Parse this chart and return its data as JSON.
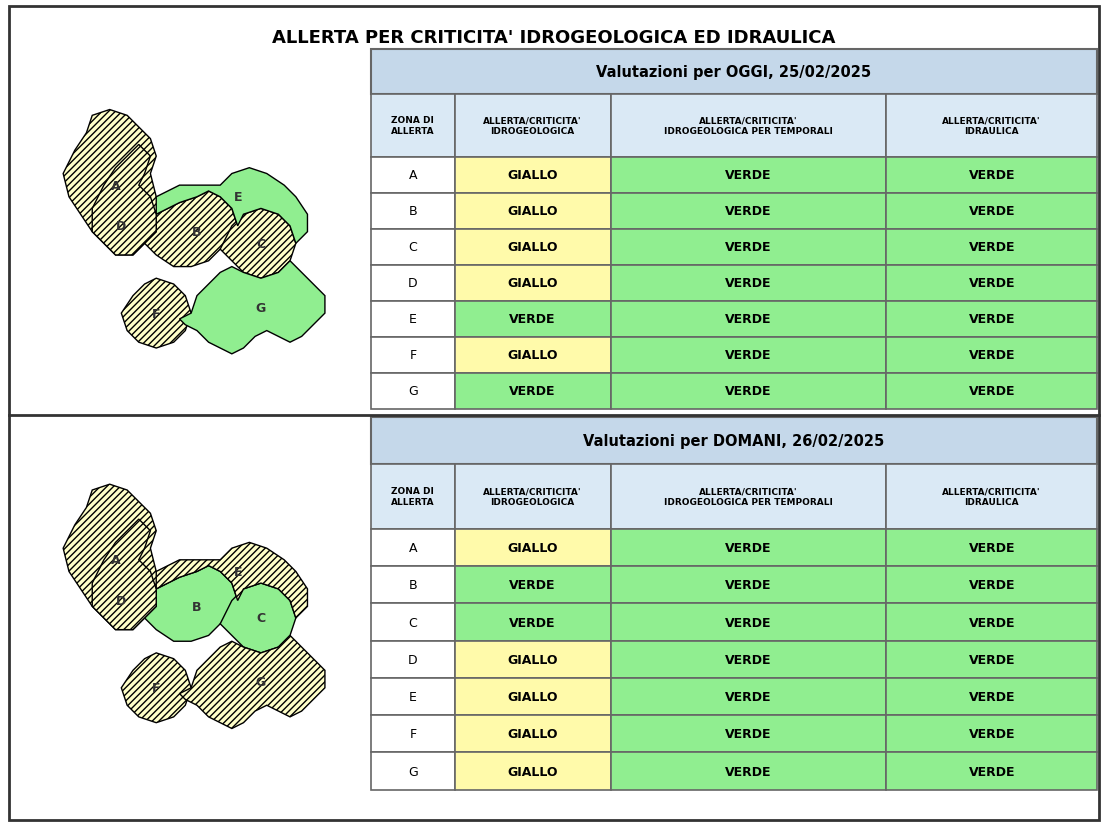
{
  "title": "ALLERTA PER CRITICITA' IDROGEOLOGICA ED IDRAULICA",
  "table1_header": "Valutazioni per OGGI, 25/02/2025",
  "table2_header": "Valutazioni per DOMANI, 26/02/2025",
  "col_headers": [
    "ZONA DI\nALLERTA",
    "ALLERTA/CRITICITA'\nIDROGEOLOGICA",
    "ALLERTA/CRITICITA'\nIDROGEOLOGICA PER TEMPORALI",
    "ALLERTA/CRITICITA'\nIDRAULICA"
  ],
  "table1_data": [
    [
      "A",
      "GIALLO",
      "VERDE",
      "VERDE"
    ],
    [
      "B",
      "GIALLO",
      "VERDE",
      "VERDE"
    ],
    [
      "C",
      "GIALLO",
      "VERDE",
      "VERDE"
    ],
    [
      "D",
      "GIALLO",
      "VERDE",
      "VERDE"
    ],
    [
      "E",
      "VERDE",
      "VERDE",
      "VERDE"
    ],
    [
      "F",
      "GIALLO",
      "VERDE",
      "VERDE"
    ],
    [
      "G",
      "VERDE",
      "VERDE",
      "VERDE"
    ]
  ],
  "table2_data": [
    [
      "A",
      "GIALLO",
      "VERDE",
      "VERDE"
    ],
    [
      "B",
      "VERDE",
      "VERDE",
      "VERDE"
    ],
    [
      "C",
      "VERDE",
      "VERDE",
      "VERDE"
    ],
    [
      "D",
      "GIALLO",
      "VERDE",
      "VERDE"
    ],
    [
      "E",
      "GIALLO",
      "VERDE",
      "VERDE"
    ],
    [
      "F",
      "GIALLO",
      "VERDE",
      "VERDE"
    ],
    [
      "G",
      "GIALLO",
      "VERDE",
      "VERDE"
    ]
  ],
  "color_giallo": "#FFFAAA",
  "color_verde": "#90EE90",
  "color_header_bg": "#C5D8EA",
  "color_col_header_bg": "#DAE9F5",
  "map1_yellow_zones": [
    "A",
    "B",
    "C",
    "D",
    "F"
  ],
  "map1_green_zones": [
    "E",
    "G"
  ],
  "map2_yellow_zones": [
    "A",
    "D",
    "E",
    "F",
    "G"
  ],
  "map2_green_zones": [
    "B",
    "C"
  ]
}
